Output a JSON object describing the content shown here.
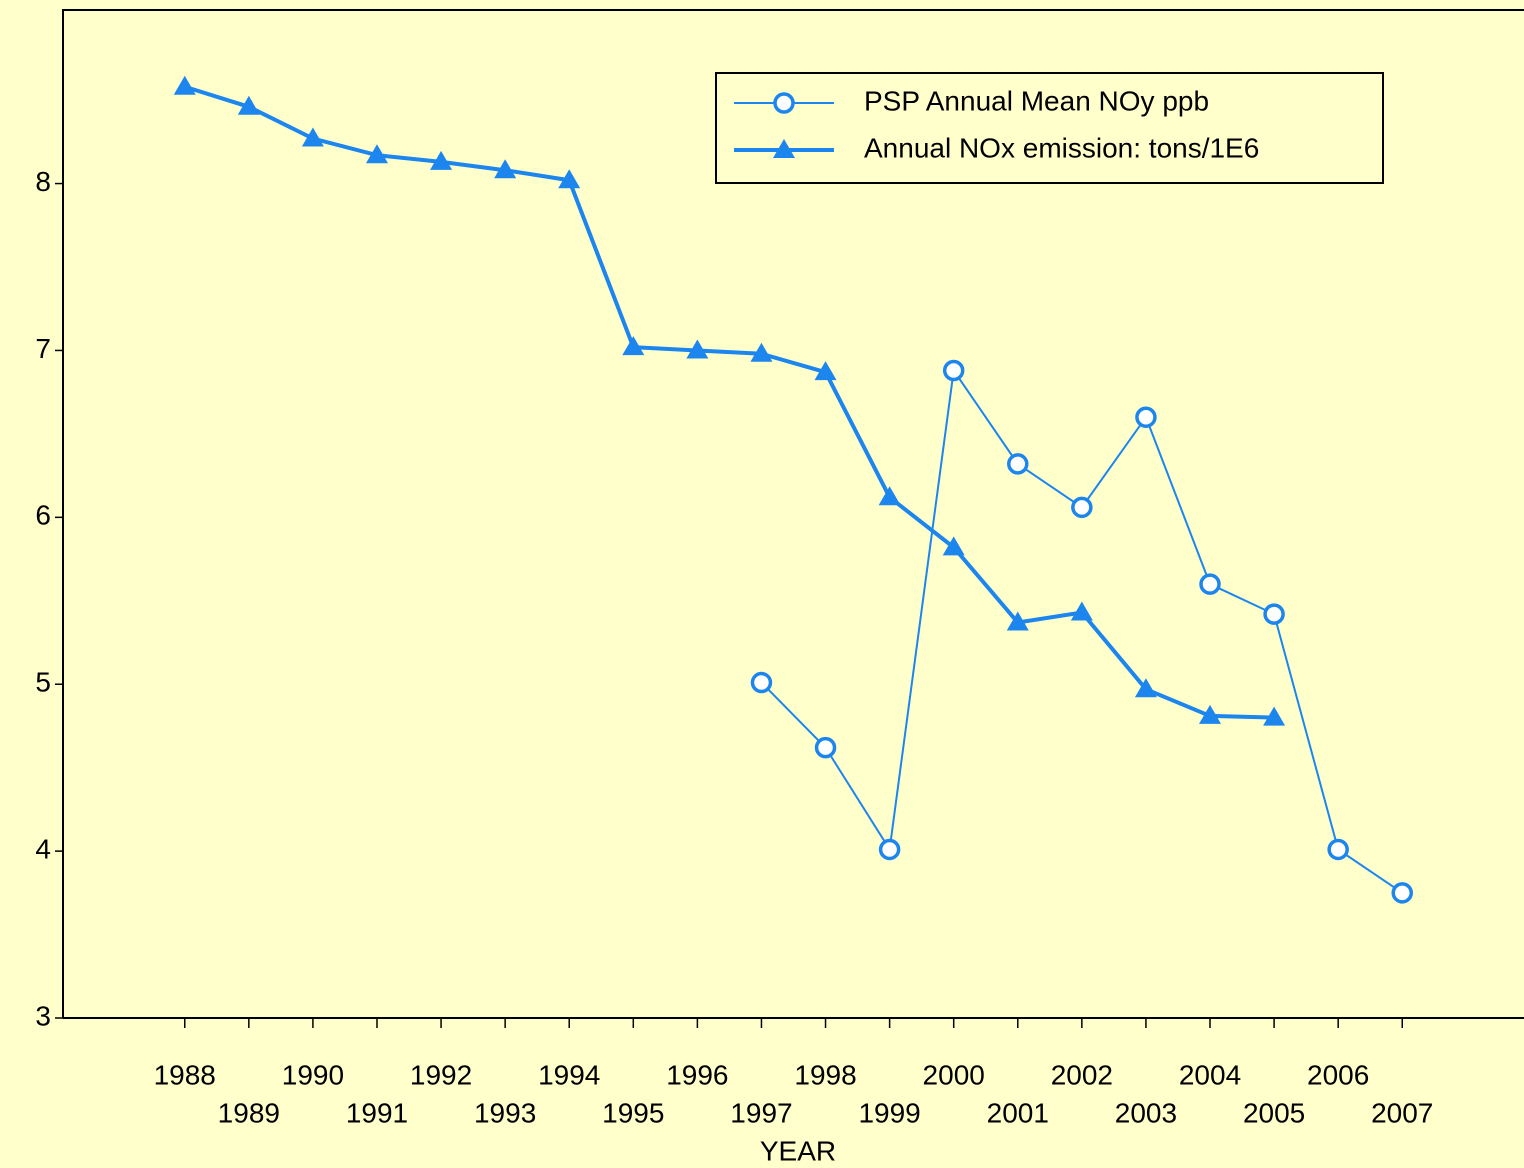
{
  "chart_data": {
    "type": "line",
    "x_label": "YEAR",
    "x": [
      1988,
      1989,
      1990,
      1991,
      1992,
      1993,
      1994,
      1995,
      1996,
      1997,
      1998,
      1999,
      2000,
      2001,
      2002,
      2003,
      2004,
      2005,
      2006,
      2007
    ],
    "series": [
      {
        "name": "PSP Annual Mean NOy ppb",
        "color": "#1c86ee",
        "marker": "circle",
        "values": [
          null,
          null,
          null,
          null,
          null,
          null,
          null,
          null,
          null,
          5.01,
          4.62,
          4.01,
          6.88,
          6.32,
          6.06,
          6.6,
          5.6,
          5.42,
          4.01,
          3.75
        ]
      },
      {
        "name": "Annual NOx emission: tons/1E6",
        "color": "#1c86ee",
        "marker": "triangle",
        "values": [
          8.58,
          8.46,
          8.27,
          8.17,
          8.13,
          8.08,
          8.02,
          7.02,
          7.0,
          6.98,
          6.87,
          6.12,
          5.82,
          5.37,
          5.43,
          4.97,
          4.81,
          4.8,
          null,
          null
        ]
      }
    ],
    "xlim": [
      1986.1,
      2008.9
    ],
    "xticks": [
      1988,
      1989,
      1990,
      1991,
      1992,
      1993,
      1994,
      1995,
      1996,
      1997,
      1998,
      1999,
      2000,
      2001,
      2002,
      2003,
      2004,
      2005,
      2006,
      2007
    ],
    "ylim": [
      3,
      9.04
    ],
    "yticks": [
      3,
      4,
      5,
      6,
      7,
      8
    ],
    "grid": false,
    "legend": "top-right"
  }
}
